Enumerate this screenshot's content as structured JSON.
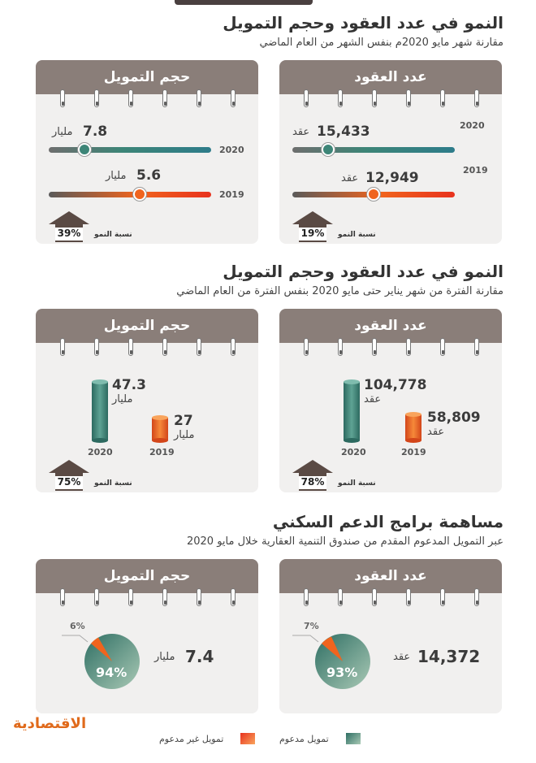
{
  "section1": {
    "title": "النمو في عدد العقود وحجم التمويل",
    "subtitle": "مقارنة شهر مايو 2020م بنفس الشهر من العام الماضي",
    "contracts_card": {
      "header": "عدد العقود",
      "year_a": "2020",
      "value_a": "15,433",
      "unit_a": "عقد",
      "year_b": "2019",
      "value_b": "12,949",
      "unit_b": "عقد",
      "growth_label": "نسبة النمو",
      "growth_pct": "19%"
    },
    "financing_card": {
      "header": "حجم التمويل",
      "year_a": "2020",
      "value_a": "7.8",
      "unit_a": "مليار",
      "year_b": "2019",
      "value_b": "5.6",
      "unit_b": "مليار",
      "growth_label": "نسبة النمو",
      "growth_pct": "39%"
    }
  },
  "section2": {
    "title": "النمو في عدد العقود وحجم التمويل",
    "subtitle": "مقارنة الفترة من شهر يناير حتى مايو 2020 بنفس الفترة من العام الماضي",
    "contracts_card": {
      "header": "عدد العقود",
      "year_a": "2020",
      "value_a": "104,778",
      "unit_a": "عقد",
      "year_b": "2019",
      "value_b": "58,809",
      "unit_b": "عقد",
      "growth_label": "نسبة النمو",
      "growth_pct": "78%"
    },
    "financing_card": {
      "header": "حجم التمويل",
      "year_a": "2020",
      "value_a": "47.3",
      "unit_a": "مليار",
      "year_b": "2019",
      "value_b": "27",
      "unit_b": "مليار",
      "growth_label": "نسبة النمو",
      "growth_pct": "75%"
    }
  },
  "section3": {
    "title": "مساهمة برامج الدعم السكني",
    "subtitle": "عبر التمويل المدعوم المقدم من صندوق التنمية العقارية خلال مايو 2020",
    "contracts_card": {
      "header": "عدد العقود",
      "value": "14,372",
      "unit": "عقد",
      "supported_pct": "93%",
      "unsupported_pct": "7%"
    },
    "financing_card": {
      "header": "حجم التمويل",
      "value": "7.4",
      "unit": "مليار",
      "supported_pct": "94%",
      "unsupported_pct": "6%"
    }
  },
  "legend": {
    "supported": "تمويل مدعوم",
    "unsupported": "تمويل غير مدعوم"
  },
  "brand": {
    "logo_text": "الاقتصادية"
  },
  "colors": {
    "teal": "#3d8577",
    "orange": "#f0641e",
    "header": "#8a7e79",
    "card": "#f1f0ef"
  },
  "chart_data": [
    {
      "type": "bar",
      "categories": [
        "2020",
        "2019"
      ],
      "values": [
        15433,
        12949
      ]
    },
    {
      "type": "bar",
      "categories": [
        "2020",
        "2019"
      ],
      "values": [
        7.8,
        5.6
      ]
    },
    {
      "type": "bar",
      "categories": [
        "2020",
        "2019"
      ],
      "values": [
        104778,
        58809
      ]
    },
    {
      "type": "bar",
      "categories": [
        "2020",
        "2019"
      ],
      "values": [
        47.3,
        27
      ]
    },
    {
      "type": "pie",
      "categories": [
        "تمويل مدعوم",
        "تمويل غير مدعوم"
      ],
      "values": [
        93,
        7
      ]
    },
    {
      "type": "pie",
      "categories": [
        "تمويل مدعوم",
        "تمويل غير مدعوم"
      ],
      "values": [
        94,
        6
      ]
    }
  ]
}
